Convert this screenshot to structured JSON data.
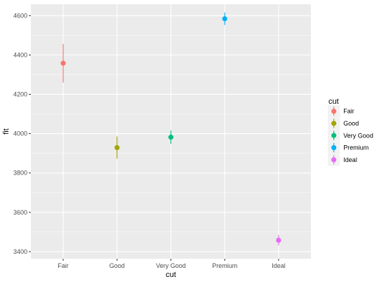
{
  "chart_data": {
    "type": "scatter",
    "variant": "pointrange",
    "categories": [
      "Fair",
      "Good",
      "Very Good",
      "Premium",
      "Ideal"
    ],
    "series": [
      {
        "category": "Fair",
        "fit": 4358,
        "lower": 4260,
        "upper": 4456,
        "color": "#F8766D"
      },
      {
        "category": "Good",
        "fit": 3929,
        "lower": 3872,
        "upper": 3986,
        "color": "#A3A500"
      },
      {
        "category": "Very Good",
        "fit": 3982,
        "lower": 3948,
        "upper": 4016,
        "color": "#00BF7D"
      },
      {
        "category": "Premium",
        "fit": 4584,
        "lower": 4552,
        "upper": 4616,
        "color": "#00B0F6"
      },
      {
        "category": "Ideal",
        "fit": 3458,
        "lower": 3432,
        "upper": 3484,
        "color": "#E76BF3"
      }
    ],
    "xlabel": "cut",
    "ylabel": "fit",
    "yticks": [
      3400,
      3600,
      3800,
      4000,
      4200,
      4400,
      4600
    ],
    "ylim": [
      3364,
      4658
    ],
    "grid": true,
    "legend": {
      "title": "cut",
      "position": "right",
      "entries": [
        "Fair",
        "Good",
        "Very Good",
        "Premium",
        "Ideal"
      ]
    }
  }
}
